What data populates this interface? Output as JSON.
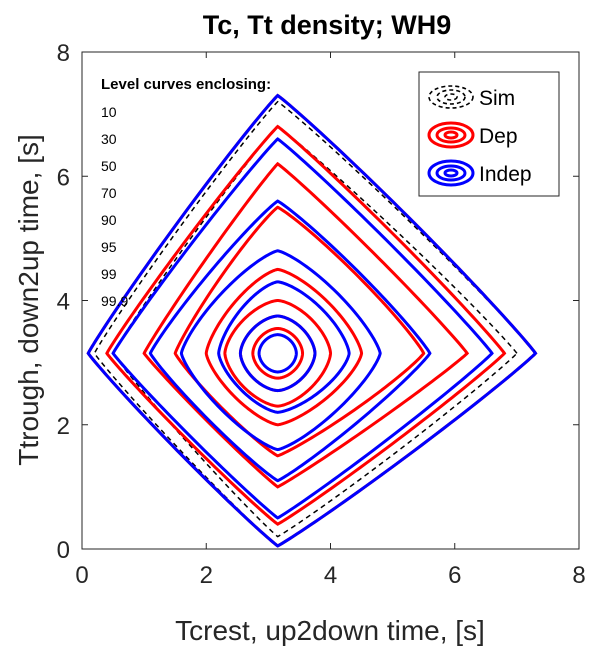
{
  "chart_data": {
    "type": "contour",
    "title": "Tc, Tt density; WH9",
    "xlabel": "Tcrest, up2down time, [s]",
    "ylabel": "Ttrough, down2up time, [s]",
    "xlim": [
      0,
      8
    ],
    "ylim": [
      0,
      8
    ],
    "xticks": [
      "0",
      "2",
      "4",
      "6",
      "8"
    ],
    "yticks": [
      "0",
      "2",
      "4",
      "6",
      "8"
    ],
    "grid": false,
    "legend_position": "top-right",
    "annotation": {
      "title": "Level curves enclosing:",
      "levels": [
        "10",
        "30",
        "50",
        "70",
        "90",
        "95",
        "99",
        "99.9"
      ]
    },
    "series": [
      {
        "name": "Sim",
        "color": "#000000",
        "line_style": "dashed",
        "center": [
          3.15,
          3.15
        ],
        "contours": [
          {
            "level": 99,
            "extent_x": [
              0.2,
              7.3
            ],
            "extent_y": [
              0.05,
              7.2
            ]
          },
          {
            "level": 95,
            "extent_x": [
              0.5,
              7.0
            ],
            "extent_y": [
              0.2,
              6.8
            ]
          }
        ]
      },
      {
        "name": "Dep",
        "color": "#ff0000",
        "line_style": "solid",
        "center": [
          3.15,
          3.15
        ],
        "contours": [
          {
            "level": 10,
            "extent_x": [
              2.75,
              3.55
            ],
            "extent_y": [
              2.75,
              3.55
            ]
          },
          {
            "level": 30,
            "extent_x": [
              2.55,
              3.75
            ],
            "extent_y": [
              2.55,
              3.75
            ]
          },
          {
            "level": 50,
            "extent_x": [
              2.3,
              4.0
            ],
            "extent_y": [
              2.3,
              4.0
            ]
          },
          {
            "level": 70,
            "extent_x": [
              2.0,
              4.5
            ],
            "extent_y": [
              2.0,
              4.5
            ]
          },
          {
            "level": 90,
            "extent_x": [
              1.5,
              5.5
            ],
            "extent_y": [
              1.5,
              5.5
            ]
          },
          {
            "level": 95,
            "extent_x": [
              1.0,
              6.2
            ],
            "extent_y": [
              1.0,
              6.2
            ]
          },
          {
            "level": 99,
            "extent_x": [
              0.4,
              6.8
            ],
            "extent_y": [
              0.4,
              6.8
            ]
          },
          {
            "level": 99.9,
            "extent_x": [
              0.1,
              7.3
            ],
            "extent_y": [
              0.05,
              7.3
            ]
          }
        ]
      },
      {
        "name": "Indep",
        "color": "#0000ff",
        "line_style": "solid",
        "center": [
          3.15,
          3.15
        ],
        "contours": [
          {
            "level": 10,
            "extent_x": [
              2.85,
              3.45
            ],
            "extent_y": [
              2.85,
              3.45
            ]
          },
          {
            "level": 30,
            "extent_x": [
              2.55,
              3.75
            ],
            "extent_y": [
              2.55,
              3.75
            ]
          },
          {
            "level": 50,
            "extent_x": [
              2.2,
              4.3
            ],
            "extent_y": [
              2.2,
              4.3
            ]
          },
          {
            "level": 70,
            "extent_x": [
              1.6,
              4.8
            ],
            "extent_y": [
              1.6,
              4.8
            ]
          },
          {
            "level": 90,
            "extent_x": [
              1.1,
              5.6
            ],
            "extent_y": [
              1.1,
              5.6
            ]
          },
          {
            "level": 95,
            "extent_x": [
              0.5,
              6.6
            ],
            "extent_y": [
              0.5,
              6.6
            ]
          },
          {
            "level": 99,
            "extent_x": [
              0.1,
              7.3
            ],
            "extent_y": [
              0.05,
              7.3
            ]
          }
        ]
      }
    ]
  }
}
